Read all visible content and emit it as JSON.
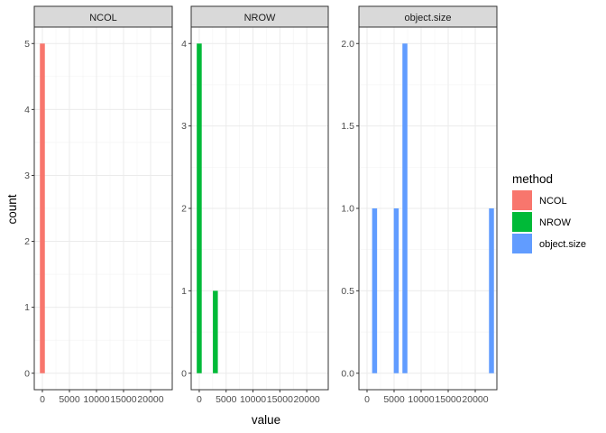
{
  "chart_data": {
    "type": "bar",
    "xlabel": "value",
    "ylabel": "count",
    "grid": true,
    "legend_placement": "right",
    "legend": {
      "title": "method",
      "entries": [
        {
          "label": "NCOL",
          "color": "#F8766D"
        },
        {
          "label": "NROW",
          "color": "#00BA38"
        },
        {
          "label": "object.size",
          "color": "#619CFF"
        }
      ]
    },
    "xlim": [
      -1500,
      24000
    ],
    "x_ticks": [
      0,
      5000,
      10000,
      15000,
      20000
    ],
    "x_tick_labels": [
      "0",
      "5000",
      "10000",
      "15000",
      "20000"
    ],
    "panels": [
      {
        "strip": "NCOL",
        "color": "#F8766D",
        "ylim": [
          0,
          5
        ],
        "y_ticks": [
          0,
          1,
          2,
          3,
          4,
          5
        ],
        "y_tick_labels": [
          "0",
          "1",
          "2",
          "3",
          "4",
          "5"
        ],
        "bars": [
          {
            "x": 0,
            "count": 5
          }
        ]
      },
      {
        "strip": "NROW",
        "color": "#00BA38",
        "ylim": [
          0,
          4
        ],
        "y_ticks": [
          0,
          1,
          2,
          3,
          4
        ],
        "y_tick_labels": [
          "0",
          "1",
          "2",
          "3",
          "4"
        ],
        "bars": [
          {
            "x": 0,
            "count": 4
          },
          {
            "x": 3000,
            "count": 1
          }
        ]
      },
      {
        "strip": "object.size",
        "color": "#619CFF",
        "ylim": [
          0,
          2
        ],
        "y_ticks": [
          0,
          0.5,
          1,
          1.5,
          2
        ],
        "y_tick_labels": [
          "0.0",
          "0.5",
          "1.0",
          "1.5",
          "2.0"
        ],
        "bars": [
          {
            "x": 1400,
            "count": 1
          },
          {
            "x": 5400,
            "count": 1
          },
          {
            "x": 7000,
            "count": 2
          },
          {
            "x": 23000,
            "count": 1
          }
        ]
      }
    ]
  }
}
